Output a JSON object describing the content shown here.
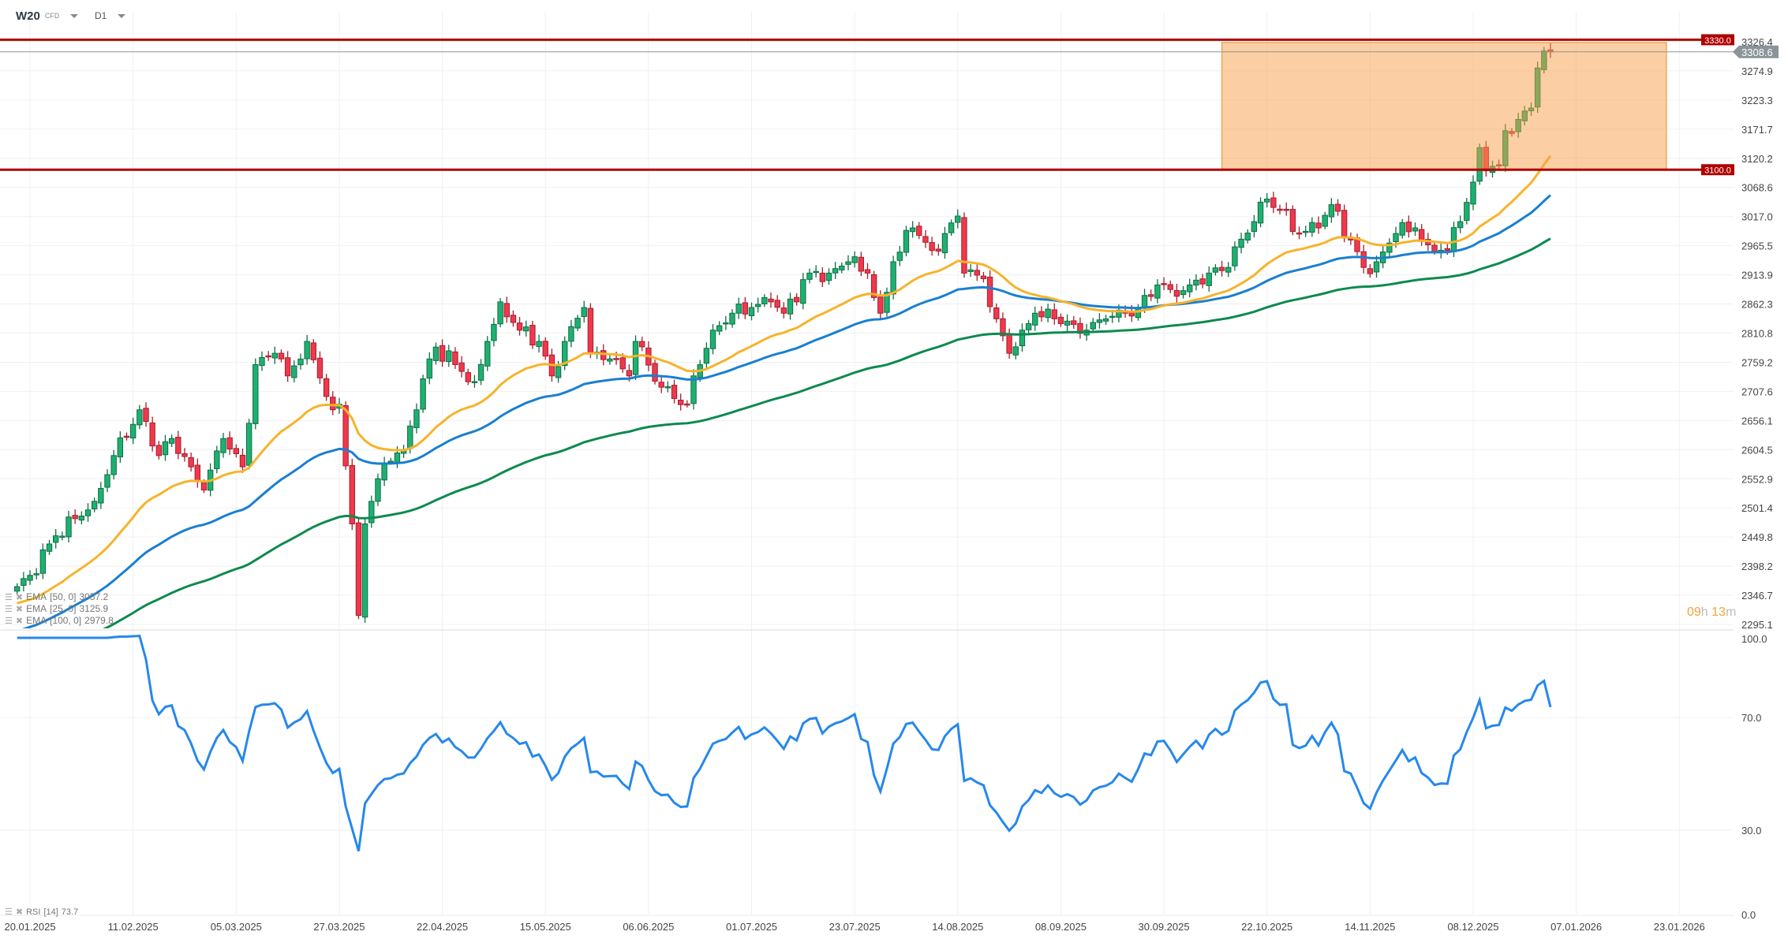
{
  "header": {
    "symbol": "W20",
    "symbol_type": "CFD",
    "timeframe": "D1"
  },
  "legend": {
    "ema50": {
      "name": "EMA",
      "params": "[50, 0]",
      "value": "3057.2"
    },
    "ema25": {
      "name": "EMA",
      "params": "[25, 0]",
      "value": "3125.9"
    },
    "ema100": {
      "name": "EMA",
      "params": "[100, 0]",
      "value": "2979.8"
    },
    "rsi": {
      "name": "RSI",
      "params": "[14]",
      "value": "73.7"
    }
  },
  "timer": {
    "hours": "09",
    "h": "h",
    "minutes": "13",
    "m": "m"
  },
  "colors": {
    "up": "#1fb071",
    "down": "#f0384c",
    "ema25": "#f7b32b",
    "ema50": "#1a7fd0",
    "ema100": "#0d8a4f",
    "rsi": "#2688ec",
    "level": "#b00000",
    "zone": "#f7a048"
  },
  "chart_data": {
    "type": "candlestick",
    "instrument": "W20",
    "price_ticks": [
      "3326.4",
      "3274.9",
      "3223.3",
      "3171.7",
      "3120.2",
      "3068.6",
      "3017.0",
      "2965.5",
      "2913.9",
      "2862.3",
      "2810.8",
      "2759.2",
      "2707.6",
      "2656.1",
      "2604.5",
      "2552.9",
      "2501.4",
      "2449.8",
      "2398.2",
      "2346.7",
      "2295.1"
    ],
    "price_range": [
      2295.1,
      3326.4
    ],
    "date_labels": [
      "20.01.2025",
      "11.02.2025",
      "05.03.2025",
      "27.03.2025",
      "22.04.2025",
      "15.05.2025",
      "06.06.2025",
      "01.07.2025",
      "23.07.2025",
      "14.08.2025",
      "08.09.2025",
      "30.09.2025",
      "22.10.2025",
      "14.11.2025",
      "08.12.2025",
      "07.01.2026",
      "23.01.2026"
    ],
    "date_label_step_bars": 16,
    "current_price": "3308.6",
    "levels": [
      {
        "price": 3330.0,
        "label": "3330.0"
      },
      {
        "price": 3100.0,
        "label": "3100.0"
      }
    ],
    "zone": {
      "from_bar": 187,
      "to_bar": 256,
      "low": 3100,
      "high": 3325
    },
    "close_anchors": [
      [
        0,
        2362
      ],
      [
        2,
        2382
      ],
      [
        6,
        2452
      ],
      [
        12,
        2513
      ],
      [
        15,
        2594
      ],
      [
        19,
        2675
      ],
      [
        22,
        2594
      ],
      [
        24,
        2624
      ],
      [
        27,
        2574
      ],
      [
        29,
        2533
      ],
      [
        32,
        2624
      ],
      [
        35,
        2574
      ],
      [
        37,
        2755
      ],
      [
        40,
        2775
      ],
      [
        42,
        2735
      ],
      [
        45,
        2796
      ],
      [
        49,
        2675
      ],
      [
        50,
        2685
      ],
      [
        52,
        2473
      ],
      [
        53,
        2311
      ],
      [
        54,
        2473
      ],
      [
        56,
        2553
      ],
      [
        58,
        2584
      ],
      [
        60,
        2604
      ],
      [
        62,
        2675
      ],
      [
        64,
        2765
      ],
      [
        65,
        2786
      ],
      [
        68,
        2755
      ],
      [
        71,
        2725
      ],
      [
        73,
        2796
      ],
      [
        75,
        2866
      ],
      [
        78,
        2816
      ],
      [
        81,
        2796
      ],
      [
        83,
        2735
      ],
      [
        85,
        2796
      ],
      [
        88,
        2856
      ],
      [
        89,
        2775
      ],
      [
        92,
        2765
      ],
      [
        95,
        2735
      ],
      [
        96,
        2796
      ],
      [
        100,
        2715
      ],
      [
        104,
        2685
      ],
      [
        105,
        2735
      ],
      [
        108,
        2816
      ],
      [
        111,
        2846
      ],
      [
        114,
        2856
      ],
      [
        117,
        2866
      ],
      [
        119,
        2846
      ],
      [
        123,
        2917
      ],
      [
        126,
        2917
      ],
      [
        129,
        2937
      ],
      [
        132,
        2917
      ],
      [
        134,
        2846
      ],
      [
        136,
        2937
      ],
      [
        139,
        2997
      ],
      [
        142,
        2957
      ],
      [
        144,
        2987
      ],
      [
        146,
        3018
      ],
      [
        147,
        2917
      ],
      [
        150,
        2907
      ],
      [
        152,
        2836
      ],
      [
        154,
        2775
      ],
      [
        156,
        2816
      ],
      [
        158,
        2846
      ],
      [
        161,
        2836
      ],
      [
        164,
        2826
      ],
      [
        166,
        2816
      ],
      [
        169,
        2836
      ],
      [
        172,
        2846
      ],
      [
        174,
        2856
      ],
      [
        177,
        2896
      ],
      [
        180,
        2876
      ],
      [
        182,
        2896
      ],
      [
        185,
        2917
      ],
      [
        188,
        2927
      ],
      [
        190,
        2977
      ],
      [
        192,
        3008
      ],
      [
        194,
        3048
      ],
      [
        196,
        3028
      ],
      [
        199,
        2987
      ],
      [
        202,
        2997
      ],
      [
        204,
        3038
      ],
      [
        207,
        2977
      ],
      [
        209,
        2927
      ],
      [
        211,
        2937
      ],
      [
        214,
        2987
      ],
      [
        217,
        2997
      ],
      [
        219,
        2967
      ],
      [
        222,
        2957
      ],
      [
        224,
        3008
      ],
      [
        226,
        3078
      ],
      [
        227,
        3139
      ],
      [
        228,
        3098
      ],
      [
        230,
        3108
      ],
      [
        231,
        3169
      ],
      [
        233,
        3189
      ],
      [
        235,
        3209
      ],
      [
        236,
        3280
      ],
      [
        237,
        3310
      ],
      [
        238,
        3308.6
      ]
    ],
    "ema_seeds": {
      "ema25": 2330,
      "ema50": 2280,
      "ema100": 2230
    },
    "rsi_ticks": [
      "100.0",
      "70.0",
      "30.0",
      "0.0"
    ],
    "rsi_range": [
      0,
      100
    ],
    "rsi_last": 73.7
  }
}
